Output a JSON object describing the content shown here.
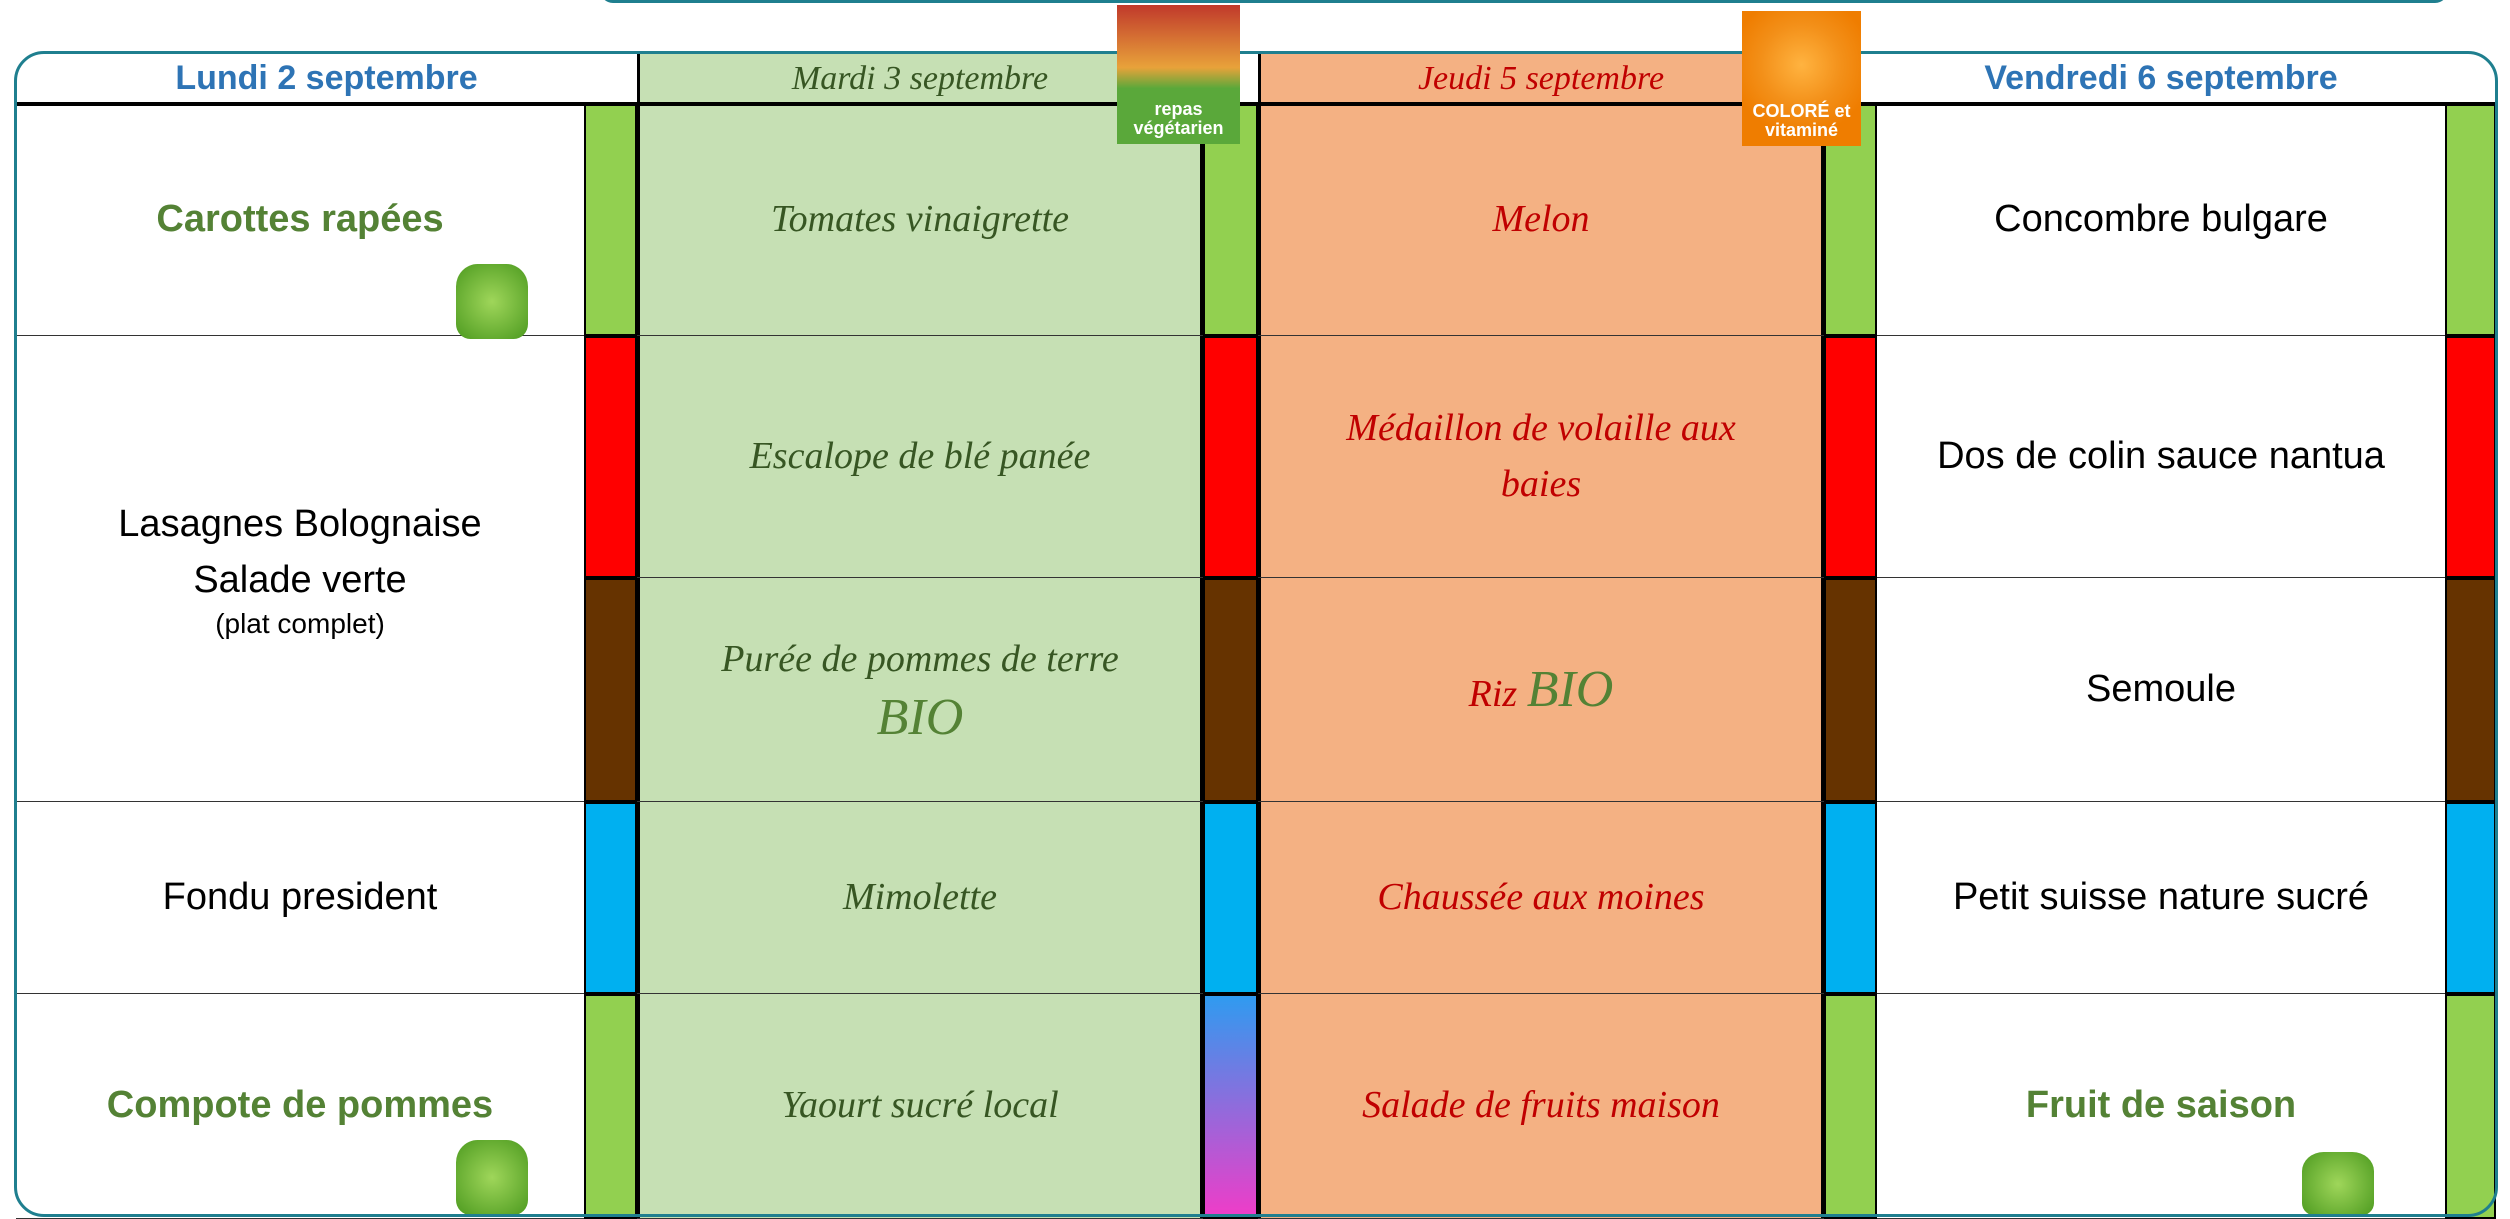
{
  "header": {
    "days": [
      "Lundi 2 septembre",
      "Mardi 3 septembre",
      "Jeudi 5 septembre",
      "Vendredi 6 septembre"
    ]
  },
  "badges": {
    "vegetarian": "repas végétarien",
    "colorful": "COLORÉ et vitaminé"
  },
  "menu": {
    "columns": [
      {
        "cells": [
          [
            "Carottes rapées"
          ],
          [
            "Lasagnes Bolognaise",
            "Salade verte",
            "(plat complet)"
          ],
          [
            "Fondu president"
          ],
          [
            "Compote de pommes"
          ]
        ]
      },
      {
        "cells": [
          [
            "Tomates vinaigrette"
          ],
          [
            "Escalope de blé panée"
          ],
          [
            "Purée de pommes de terre",
            "BIO"
          ],
          [
            "Mimolette"
          ],
          [
            "Yaourt sucré local"
          ]
        ]
      },
      {
        "cells": [
          [
            "Melon"
          ],
          [
            "Médaillon de volaille aux baies"
          ],
          [
            "Riz",
            "BIO"
          ],
          [
            "Chaussée aux moines"
          ],
          [
            "Salade de fruits maison"
          ]
        ]
      },
      {
        "cells": [
          [
            "Concombre bulgare"
          ],
          [
            "Dos de colin sauce nantua"
          ],
          [
            "Semoule"
          ],
          [
            "Petit suisse nature sucré"
          ],
          [
            "Fruit de saison"
          ]
        ]
      }
    ]
  }
}
